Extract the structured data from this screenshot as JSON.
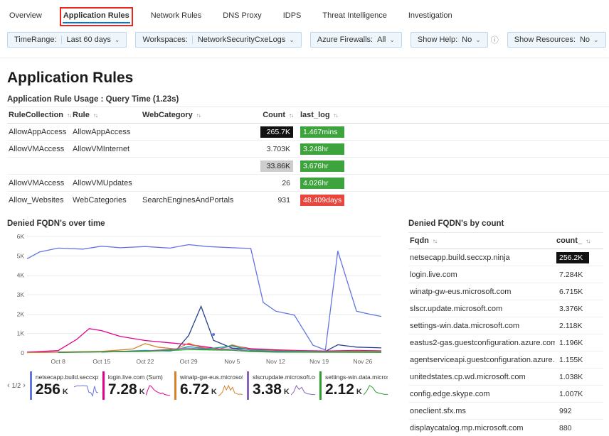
{
  "page_title": "Application Rules",
  "ui": {
    "caret_icon": "⌄",
    "info_icon": "ⓘ",
    "sort_icon": "↑↓",
    "pager_prev_icon": "‹",
    "pager_next_icon": "›"
  },
  "colors": {
    "accent": "#0078d4",
    "annotation_red": "#e8271f",
    "badge_black": "#111111",
    "badge_gray": "#cdcdcd",
    "badge_green": "#3da33c",
    "badge_red": "#e8463c"
  },
  "tabs": [
    {
      "label": "Overview"
    },
    {
      "label": "Application Rules",
      "selected": true,
      "annotated": true
    },
    {
      "label": "Network Rules"
    },
    {
      "label": "DNS Proxy"
    },
    {
      "label": "IDPS"
    },
    {
      "label": "Threat Intelligence"
    },
    {
      "label": "Investigation"
    }
  ],
  "filters": [
    {
      "label": "TimeRange:",
      "value": "Last 60 days",
      "divided": true,
      "info": false
    },
    {
      "label": "Workspaces:",
      "value": "NetworkSecurityCxeLogs",
      "divided": true,
      "info": false
    },
    {
      "label": "Azure Firewalls:",
      "value": "All",
      "divided": false,
      "info": false
    },
    {
      "label": "Show Help:",
      "value": "No",
      "divided": false,
      "info": true
    },
    {
      "label": "Show Resources:",
      "value": "No",
      "divided": false,
      "info": true
    }
  ],
  "rule_table": {
    "title": "Application Rule Usage : Query Time (1.23s)",
    "columns": [
      "RuleCollection",
      "Rule",
      "WebCategory",
      "Count",
      "last_log"
    ],
    "rows": [
      {
        "collection": "AllowAppAccess",
        "rule": "AllowAppAccess",
        "web": "",
        "count": "265.7K",
        "count_style": "black",
        "last": "1.467mins",
        "last_style": "green"
      },
      {
        "collection": "AllowVMAccess",
        "rule": "AllowVMInternet",
        "web": "",
        "count": "3.703K",
        "count_style": "plain",
        "last": "3.248hr",
        "last_style": "green"
      },
      {
        "collection": "",
        "rule": "",
        "web": "",
        "count": "33.86K",
        "count_style": "gray",
        "last": "3.676hr",
        "last_style": "green"
      },
      {
        "collection": "AllowVMAccess",
        "rule": "AllowVMUpdates",
        "web": "",
        "count": "26",
        "count_style": "plain",
        "last": "4.026hr",
        "last_style": "green"
      },
      {
        "collection": "Allow_Websites",
        "rule": "WebCategories",
        "web": "SearchEnginesAndPortals",
        "count": "931",
        "count_style": "plain",
        "last": "48.409days",
        "last_style": "red"
      }
    ]
  },
  "charts": {
    "over_time_title": "Denied FQDN's over time"
  },
  "chart_data": {
    "type": "line",
    "title": "Denied FQDN's over time",
    "xlabel": "",
    "ylabel": "",
    "ylim": [
      0,
      6000
    ],
    "xlim": [
      0,
      57
    ],
    "ytick_labels": [
      "0",
      "1K",
      "2K",
      "3K",
      "4K",
      "5K",
      "6K"
    ],
    "xticks": [
      {
        "pos": 5,
        "label": "Oct 8"
      },
      {
        "pos": 12,
        "label": "Oct 15"
      },
      {
        "pos": 19,
        "label": "Oct 22"
      },
      {
        "pos": 26,
        "label": "Oct 29"
      },
      {
        "pos": 33,
        "label": "Nov 5"
      },
      {
        "pos": 40,
        "label": "Nov 12"
      },
      {
        "pos": 47,
        "label": "Nov 19"
      },
      {
        "pos": 54,
        "label": "Nov 26"
      }
    ],
    "grid": true,
    "legend_position": "none",
    "series": [
      {
        "name": "netsecapp.build.seccxp.ninja",
        "color": "#6373e3",
        "points": [
          [
            0,
            4850
          ],
          [
            2,
            5200
          ],
          [
            5,
            5400
          ],
          [
            9,
            5350
          ],
          [
            12,
            5500
          ],
          [
            15,
            5420
          ],
          [
            19,
            5480
          ],
          [
            23,
            5400
          ],
          [
            26,
            5580
          ],
          [
            29,
            5480
          ],
          [
            33,
            5420
          ],
          [
            36,
            5380
          ],
          [
            38,
            2600
          ],
          [
            40,
            2150
          ],
          [
            43,
            1950
          ],
          [
            46,
            400
          ],
          [
            48,
            150
          ],
          [
            50,
            5250
          ],
          [
            53,
            2150
          ],
          [
            55,
            2000
          ],
          [
            57,
            1880
          ]
        ]
      },
      {
        "name": "eastus2-gas.guestconfiguration.azure.com",
        "color": "#27408f",
        "points": [
          [
            0,
            30
          ],
          [
            19,
            80
          ],
          [
            24,
            150
          ],
          [
            26,
            900
          ],
          [
            28,
            2400
          ],
          [
            30,
            650
          ],
          [
            33,
            250
          ],
          [
            36,
            180
          ],
          [
            40,
            150
          ],
          [
            44,
            100
          ],
          [
            48,
            80
          ],
          [
            50,
            420
          ],
          [
            53,
            300
          ],
          [
            57,
            260
          ]
        ]
      },
      {
        "name": "login.live.com",
        "color": "#e3008c",
        "points": [
          [
            0,
            40
          ],
          [
            5,
            120
          ],
          [
            8,
            700
          ],
          [
            10,
            1250
          ],
          [
            12,
            1150
          ],
          [
            15,
            850
          ],
          [
            19,
            640
          ],
          [
            23,
            520
          ],
          [
            26,
            430
          ],
          [
            29,
            300
          ],
          [
            31,
            200
          ],
          [
            33,
            380
          ],
          [
            36,
            220
          ],
          [
            40,
            160
          ],
          [
            44,
            120
          ],
          [
            48,
            100
          ],
          [
            53,
            130
          ],
          [
            57,
            110
          ]
        ]
      },
      {
        "name": "winatp-gw-eus.microsoft.com",
        "color": "#d9822b",
        "points": [
          [
            0,
            20
          ],
          [
            12,
            80
          ],
          [
            17,
            200
          ],
          [
            19,
            480
          ],
          [
            21,
            300
          ],
          [
            24,
            200
          ],
          [
            26,
            500
          ],
          [
            28,
            280
          ],
          [
            31,
            180
          ],
          [
            33,
            420
          ],
          [
            36,
            160
          ],
          [
            40,
            110
          ],
          [
            44,
            90
          ],
          [
            48,
            70
          ],
          [
            53,
            95
          ],
          [
            57,
            80
          ]
        ]
      },
      {
        "name": "agentserviceapi.guestconfiguration.azure.com",
        "color": "#12a5a0",
        "points": [
          [
            12,
            40
          ],
          [
            19,
            130
          ],
          [
            23,
            90
          ],
          [
            26,
            330
          ],
          [
            29,
            210
          ],
          [
            33,
            360
          ],
          [
            36,
            130
          ],
          [
            40,
            90
          ],
          [
            48,
            60
          ],
          [
            57,
            55
          ]
        ]
      },
      {
        "name": "slscr.update.microsoft.com",
        "color": "#8764b8",
        "points": [
          [
            5,
            30
          ],
          [
            19,
            100
          ],
          [
            26,
            250
          ],
          [
            30,
            160
          ],
          [
            33,
            210
          ],
          [
            36,
            90
          ],
          [
            40,
            60
          ],
          [
            48,
            45
          ],
          [
            57,
            40
          ]
        ]
      },
      {
        "name": "settings-win.data.microsoft.com",
        "color": "#2f9e2f",
        "points": [
          [
            5,
            25
          ],
          [
            19,
            80
          ],
          [
            26,
            170
          ],
          [
            33,
            140
          ],
          [
            36,
            70
          ],
          [
            40,
            45
          ],
          [
            48,
            35
          ],
          [
            57,
            30
          ]
        ]
      }
    ],
    "markers": [
      {
        "x": 30,
        "y": 950,
        "color": "#6373e3"
      }
    ]
  },
  "tiles": {
    "pager": "1/2",
    "items": [
      {
        "label": "netsecapp.build.seccxp.ni...",
        "value": "256",
        "unit": "K",
        "color": "#6373e3",
        "spark": [
          4.9,
          5.3,
          5.5,
          5.4,
          5.5,
          5.6,
          5.4,
          5.4,
          2.1,
          1.9,
          0.2,
          5.3,
          2.1,
          1.9
        ]
      },
      {
        "label": "login.live.com (Sum)",
        "value": "7.28",
        "unit": "K",
        "color": "#e3008c",
        "spark": [
          0.1,
          0.7,
          1.25,
          1.15,
          0.85,
          0.64,
          0.52,
          0.43,
          0.3,
          0.38,
          0.22,
          0.16,
          0.12,
          0.11
        ]
      },
      {
        "label": "winatp-gw-eus.microsoft...",
        "value": "6.72",
        "unit": "K",
        "color": "#d9822b",
        "spark": [
          0.02,
          0.08,
          0.2,
          0.48,
          0.3,
          0.5,
          0.28,
          0.42,
          0.16,
          0.11,
          0.09,
          0.1,
          0.08
        ]
      },
      {
        "label": "slscrupdate.microsoft.co...",
        "value": "3.38",
        "unit": "K",
        "color": "#8764b8",
        "spark": [
          0.03,
          0.1,
          0.25,
          0.16,
          0.21,
          0.09,
          0.06,
          0.05,
          0.04,
          0.04
        ]
      },
      {
        "label": "settings-win.data.microso...",
        "value": "2.12",
        "unit": "K",
        "color": "#2f9e2f",
        "spark": [
          0.02,
          0.08,
          0.17,
          0.14,
          0.07,
          0.05,
          0.04,
          0.03,
          0.03
        ]
      }
    ]
  },
  "fqdn_table": {
    "title": "Denied FQDN's by count",
    "columns": [
      "Fqdn",
      "count_"
    ],
    "rows": [
      {
        "fqdn": "netsecapp.build.seccxp.ninja",
        "count": "256.2K",
        "style": "black"
      },
      {
        "fqdn": "login.live.com",
        "count": "7.284K",
        "style": "plain"
      },
      {
        "fqdn": "winatp-gw-eus.microsoft.com",
        "count": "6.715K",
        "style": "plain"
      },
      {
        "fqdn": "slscr.update.microsoft.com",
        "count": "3.376K",
        "style": "plain"
      },
      {
        "fqdn": "settings-win.data.microsoft.com",
        "count": "2.118K",
        "style": "plain"
      },
      {
        "fqdn": "eastus2-gas.guestconfiguration.azure.com",
        "count": "1.196K",
        "style": "plain"
      },
      {
        "fqdn": "agentserviceapi.guestconfiguration.azure.com",
        "count": "1.155K",
        "style": "plain"
      },
      {
        "fqdn": "unitedstates.cp.wd.microsoft.com",
        "count": "1.038K",
        "style": "plain"
      },
      {
        "fqdn": "config.edge.skype.com",
        "count": "1.007K",
        "style": "plain"
      },
      {
        "fqdn": "oneclient.sfx.ms",
        "count": "992",
        "style": "plain"
      },
      {
        "fqdn": "displaycatalog.mp.microsoft.com",
        "count": "880",
        "style": "plain"
      }
    ]
  }
}
